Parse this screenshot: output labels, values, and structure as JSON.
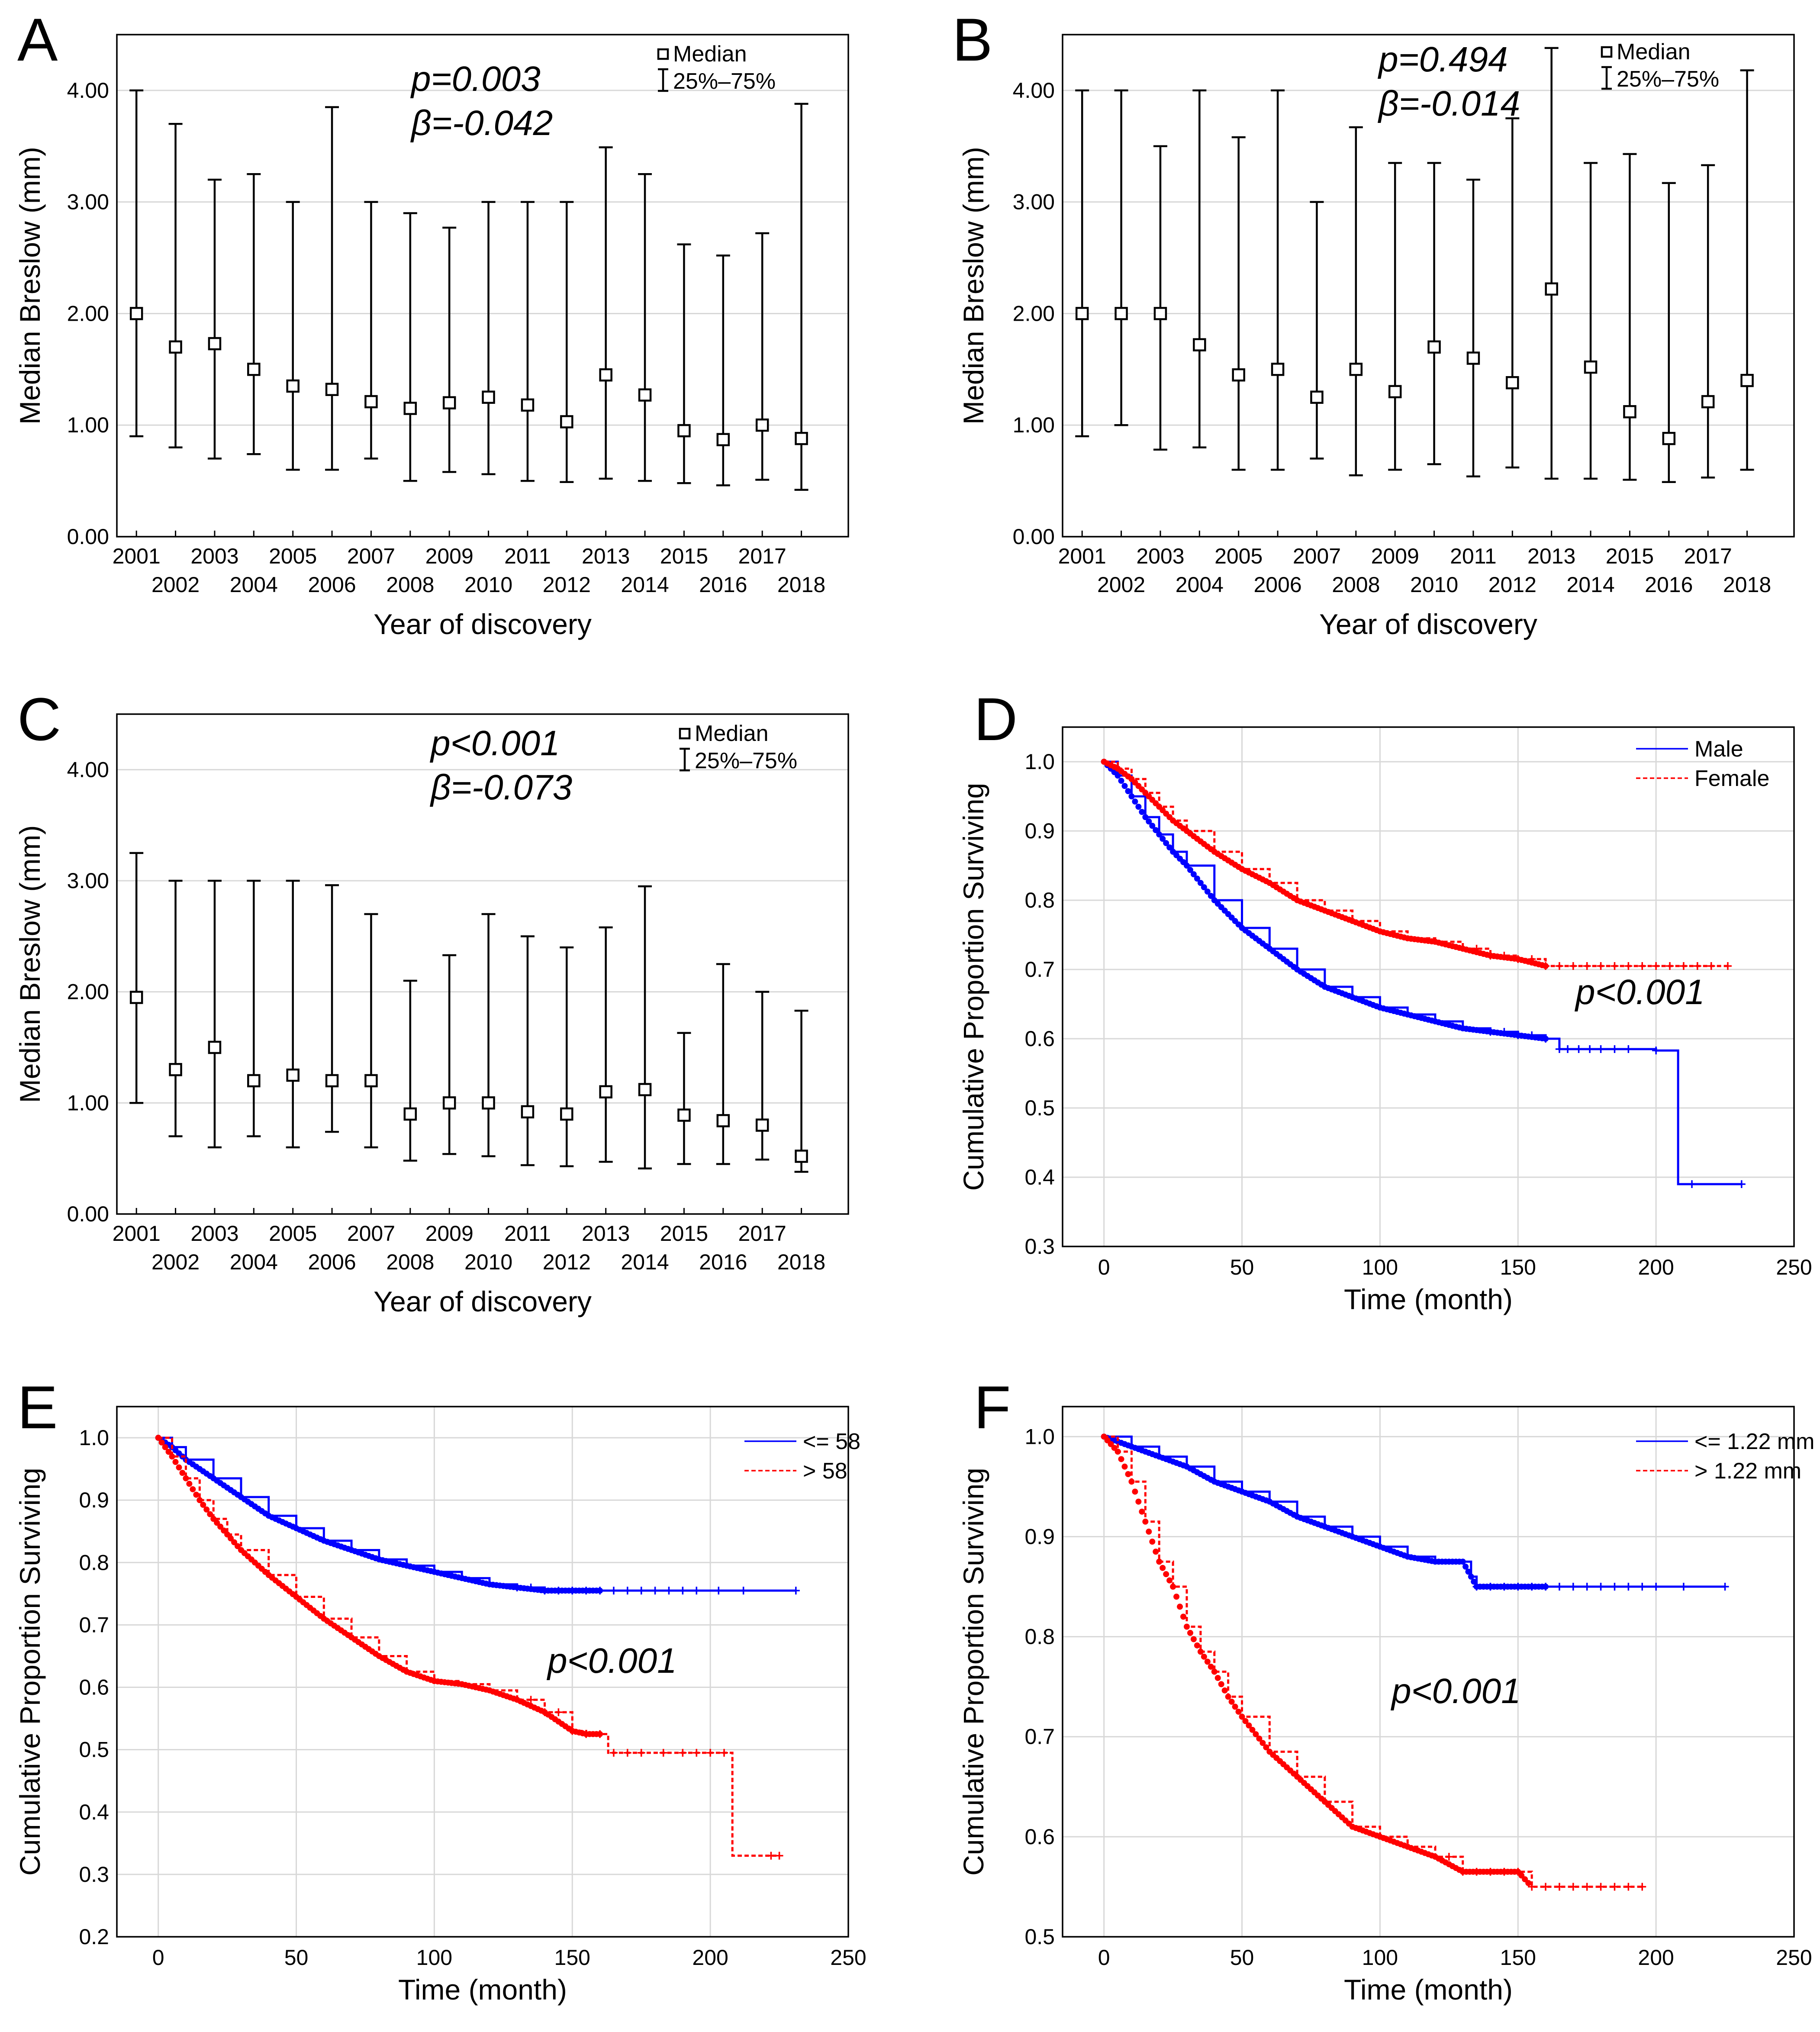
{
  "chart_data": [
    {
      "panel": "A",
      "type": "errorbar",
      "title": "",
      "xlabel": "Year of discovery",
      "ylabel": "Median Breslow (mm)",
      "ylim": [
        0,
        4.5
      ],
      "yticks": [
        "0.00",
        "1.00",
        "2.00",
        "3.00",
        "4.00"
      ],
      "categories": [
        "2001",
        "2002",
        "2003",
        "2004",
        "2005",
        "2006",
        "2007",
        "2008",
        "2009",
        "2010",
        "2011",
        "2012",
        "2013",
        "2014",
        "2015",
        "2016",
        "2017",
        "2018"
      ],
      "median": [
        2.0,
        1.7,
        1.73,
        1.5,
        1.35,
        1.32,
        1.21,
        1.15,
        1.2,
        1.25,
        1.18,
        1.03,
        1.45,
        1.27,
        0.95,
        0.87,
        1.0,
        0.88
      ],
      "q25": [
        0.9,
        0.8,
        0.7,
        0.74,
        0.6,
        0.6,
        0.7,
        0.5,
        0.58,
        0.56,
        0.5,
        0.49,
        0.52,
        0.5,
        0.48,
        0.46,
        0.51,
        0.42
      ],
      "q75": [
        4.0,
        3.7,
        3.2,
        3.25,
        3.0,
        3.85,
        3.0,
        2.9,
        2.77,
        3.0,
        3.0,
        3.0,
        3.49,
        3.25,
        2.62,
        2.52,
        2.72,
        3.88
      ],
      "stat_lines": [
        "p=0.003",
        "β=-0.042"
      ],
      "legend": [
        "Median",
        "25%–75%"
      ]
    },
    {
      "panel": "B",
      "type": "errorbar",
      "title": "",
      "xlabel": "Year of discovery",
      "ylabel": "Median Breslow (mm)",
      "ylim": [
        0,
        4.5
      ],
      "yticks": [
        "0.00",
        "1.00",
        "2.00",
        "3.00",
        "4.00"
      ],
      "categories": [
        "2001",
        "2002",
        "2003",
        "2004",
        "2005",
        "2006",
        "2007",
        "2008",
        "2009",
        "2010",
        "2011",
        "2012",
        "2013",
        "2014",
        "2015",
        "2016",
        "2017",
        "2018"
      ],
      "median": [
        2.0,
        2.0,
        2.0,
        1.72,
        1.45,
        1.5,
        1.25,
        1.5,
        1.3,
        1.7,
        1.6,
        1.38,
        2.22,
        1.52,
        1.12,
        0.88,
        1.21,
        1.4
      ],
      "q25": [
        0.9,
        1.0,
        0.78,
        0.8,
        0.6,
        0.6,
        0.7,
        0.55,
        0.6,
        0.65,
        0.54,
        0.62,
        0.52,
        0.52,
        0.51,
        0.49,
        0.53,
        0.6
      ],
      "q75": [
        4.0,
        4.0,
        3.5,
        4.0,
        3.58,
        4.0,
        3.0,
        3.67,
        3.35,
        3.35,
        3.2,
        3.75,
        4.38,
        3.35,
        3.43,
        3.17,
        3.33,
        4.18
      ],
      "stat_lines": [
        "p=0.494",
        "β=-0.014"
      ],
      "legend": [
        "Median",
        "25%–75%"
      ]
    },
    {
      "panel": "C",
      "type": "errorbar",
      "title": "",
      "xlabel": "Year of discovery",
      "ylabel": "Median Breslow (mm)",
      "ylim": [
        0,
        4.5
      ],
      "yticks": [
        "0.00",
        "1.00",
        "2.00",
        "3.00",
        "4.00"
      ],
      "categories": [
        "2001",
        "2002",
        "2003",
        "2004",
        "2005",
        "2006",
        "2007",
        "2008",
        "2009",
        "2010",
        "2011",
        "2012",
        "2013",
        "2014",
        "2015",
        "2016",
        "2017",
        "2018"
      ],
      "median": [
        1.95,
        1.3,
        1.5,
        1.2,
        1.25,
        1.2,
        1.2,
        0.9,
        1.0,
        1.0,
        0.92,
        0.9,
        1.1,
        1.12,
        0.89,
        0.84,
        0.8,
        0.52
      ],
      "q25": [
        1.0,
        0.7,
        0.6,
        0.7,
        0.6,
        0.74,
        0.6,
        0.48,
        0.54,
        0.52,
        0.44,
        0.43,
        0.47,
        0.41,
        0.45,
        0.45,
        0.49,
        0.38
      ],
      "q75": [
        3.25,
        3.0,
        3.0,
        3.0,
        3.0,
        2.96,
        2.7,
        2.1,
        2.33,
        2.7,
        2.5,
        2.4,
        2.58,
        2.95,
        1.63,
        2.25,
        2.0,
        1.83
      ],
      "stat_lines": [
        "p<0.001",
        "β=-0.073"
      ],
      "legend": [
        "Median",
        "25%–75%"
      ]
    },
    {
      "panel": "D",
      "type": "line",
      "title": "",
      "xlabel": "Time (month)",
      "ylabel": "Cumulative Proportion Surviving",
      "xlim": [
        -15,
        250
      ],
      "ylim": [
        0.3,
        1.05
      ],
      "xticks": [
        "0",
        "50",
        "100",
        "150",
        "200",
        "250"
      ],
      "yticks": [
        "0.3",
        "0.4",
        "0.5",
        "0.6",
        "0.7",
        "0.8",
        "0.9",
        "1.0"
      ],
      "stat_lines": [
        "p<0.001"
      ],
      "series": [
        {
          "name": "Male",
          "color": "#0000ff",
          "dashed": false,
          "x": [
            0,
            5,
            10,
            15,
            20,
            25,
            30,
            40,
            50,
            60,
            70,
            80,
            90,
            100,
            110,
            120,
            130,
            140,
            150,
            160,
            165,
            170,
            180,
            190,
            200,
            205,
            208,
            210,
            220,
            231
          ],
          "y": [
            1.0,
            0.98,
            0.95,
            0.92,
            0.895,
            0.87,
            0.85,
            0.8,
            0.76,
            0.73,
            0.7,
            0.675,
            0.66,
            0.645,
            0.635,
            0.625,
            0.615,
            0.61,
            0.605,
            0.6,
            0.585,
            0.585,
            0.585,
            0.585,
            0.583,
            0.583,
            0.39,
            0.39,
            0.39,
            0.39
          ],
          "censor_x": [
            140,
            145,
            150,
            155,
            160,
            165,
            168,
            172,
            176,
            180,
            185,
            190,
            200,
            213,
            231
          ]
        },
        {
          "name": "Female",
          "color": "#ff0000",
          "dashed": true,
          "x": [
            0,
            5,
            10,
            15,
            20,
            25,
            30,
            40,
            50,
            60,
            70,
            80,
            90,
            100,
            110,
            120,
            130,
            140,
            150,
            160,
            170,
            180,
            190,
            200,
            210,
            220,
            226
          ],
          "y": [
            1.0,
            0.99,
            0.975,
            0.955,
            0.935,
            0.915,
            0.9,
            0.87,
            0.845,
            0.825,
            0.8,
            0.785,
            0.77,
            0.755,
            0.745,
            0.74,
            0.73,
            0.72,
            0.715,
            0.705,
            0.705,
            0.705,
            0.705,
            0.705,
            0.705,
            0.705,
            0.705
          ],
          "censor_x": [
            135,
            140,
            145,
            150,
            155,
            160,
            165,
            170,
            175,
            180,
            185,
            190,
            195,
            200,
            205,
            210,
            215,
            220,
            226
          ]
        }
      ]
    },
    {
      "panel": "E",
      "type": "line",
      "title": "",
      "xlabel": "Time (month)",
      "ylabel": "Cumulative Proportion Surviving",
      "xlim": [
        -15,
        250
      ],
      "ylim": [
        0.2,
        1.05
      ],
      "xticks": [
        "0",
        "50",
        "100",
        "150",
        "200",
        "250"
      ],
      "yticks": [
        "0.2",
        "0.3",
        "0.4",
        "0.5",
        "0.6",
        "0.7",
        "0.8",
        "0.9",
        "1.0"
      ],
      "stat_lines": [
        "p<0.001"
      ],
      "series": [
        {
          "name": "<= 58",
          "color": "#0000ff",
          "dashed": false,
          "x": [
            0,
            5,
            10,
            20,
            30,
            40,
            50,
            60,
            70,
            80,
            90,
            100,
            110,
            120,
            130,
            140,
            150,
            160,
            170,
            180,
            190,
            200,
            210,
            220,
            231
          ],
          "y": [
            1.0,
            0.985,
            0.965,
            0.935,
            0.905,
            0.875,
            0.855,
            0.835,
            0.82,
            0.805,
            0.795,
            0.785,
            0.775,
            0.765,
            0.76,
            0.755,
            0.755,
            0.755,
            0.755,
            0.755,
            0.755,
            0.755,
            0.755,
            0.755,
            0.755
          ],
          "censor_x": [
            130,
            135,
            140,
            145,
            150,
            155,
            160,
            165,
            170,
            175,
            180,
            185,
            190,
            195,
            203,
            212,
            231
          ]
        },
        {
          "name": "> 58",
          "color": "#ff0000",
          "dashed": true,
          "x": [
            0,
            5,
            10,
            15,
            20,
            25,
            30,
            40,
            50,
            60,
            70,
            80,
            90,
            100,
            110,
            120,
            130,
            140,
            150,
            155,
            160,
            163,
            170,
            180,
            190,
            200,
            207,
            208,
            215,
            225
          ],
          "y": [
            1.0,
            0.97,
            0.935,
            0.9,
            0.87,
            0.845,
            0.82,
            0.78,
            0.745,
            0.71,
            0.68,
            0.65,
            0.625,
            0.61,
            0.605,
            0.595,
            0.58,
            0.56,
            0.53,
            0.525,
            0.525,
            0.495,
            0.495,
            0.495,
            0.495,
            0.495,
            0.495,
            0.33,
            0.33,
            0.33
          ],
          "censor_x": [
            135,
            140,
            145,
            150,
            155,
            160,
            165,
            170,
            175,
            183,
            190,
            195,
            200,
            205,
            222,
            225
          ]
        }
      ]
    },
    {
      "panel": "F",
      "type": "line",
      "title": "",
      "xlabel": "Time (month)",
      "ylabel": "Cumulative Proportion Surviving",
      "xlim": [
        -15,
        250
      ],
      "ylim": [
        0.5,
        1.03
      ],
      "xticks": [
        "0",
        "50",
        "100",
        "150",
        "200",
        "250"
      ],
      "yticks": [
        "0.5",
        "0.6",
        "0.7",
        "0.8",
        "0.9",
        "1.0"
      ],
      "stat_lines": [
        "p<0.001"
      ],
      "series": [
        {
          "name": "<= 1.22 mm",
          "color": "#0000ff",
          "dashed": false,
          "x": [
            0,
            10,
            20,
            30,
            40,
            50,
            60,
            70,
            80,
            90,
            100,
            110,
            120,
            130,
            133,
            135,
            140,
            150,
            160,
            170,
            180,
            190,
            200,
            210,
            225
          ],
          "y": [
            1.0,
            0.99,
            0.98,
            0.97,
            0.955,
            0.945,
            0.935,
            0.92,
            0.91,
            0.9,
            0.89,
            0.88,
            0.875,
            0.875,
            0.86,
            0.85,
            0.85,
            0.85,
            0.85,
            0.85,
            0.85,
            0.85,
            0.85,
            0.85,
            0.85
          ],
          "censor_x": [
            135,
            140,
            145,
            150,
            155,
            160,
            165,
            170,
            175,
            180,
            185,
            190,
            195,
            200,
            210,
            225
          ]
        },
        {
          "name": "> 1.22 mm",
          "color": "#ff0000",
          "dashed": true,
          "x": [
            0,
            5,
            10,
            15,
            20,
            25,
            30,
            35,
            40,
            45,
            50,
            60,
            70,
            80,
            90,
            100,
            110,
            120,
            130,
            140,
            150,
            155,
            160,
            170,
            180,
            195
          ],
          "y": [
            1.0,
            0.985,
            0.955,
            0.915,
            0.875,
            0.85,
            0.81,
            0.785,
            0.765,
            0.74,
            0.72,
            0.685,
            0.66,
            0.635,
            0.61,
            0.6,
            0.59,
            0.58,
            0.565,
            0.565,
            0.565,
            0.55,
            0.55,
            0.55,
            0.55,
            0.55
          ],
          "censor_x": [
            125,
            130,
            135,
            140,
            145,
            150,
            155,
            160,
            165,
            170,
            175,
            180,
            185,
            190,
            195
          ]
        }
      ]
    }
  ]
}
